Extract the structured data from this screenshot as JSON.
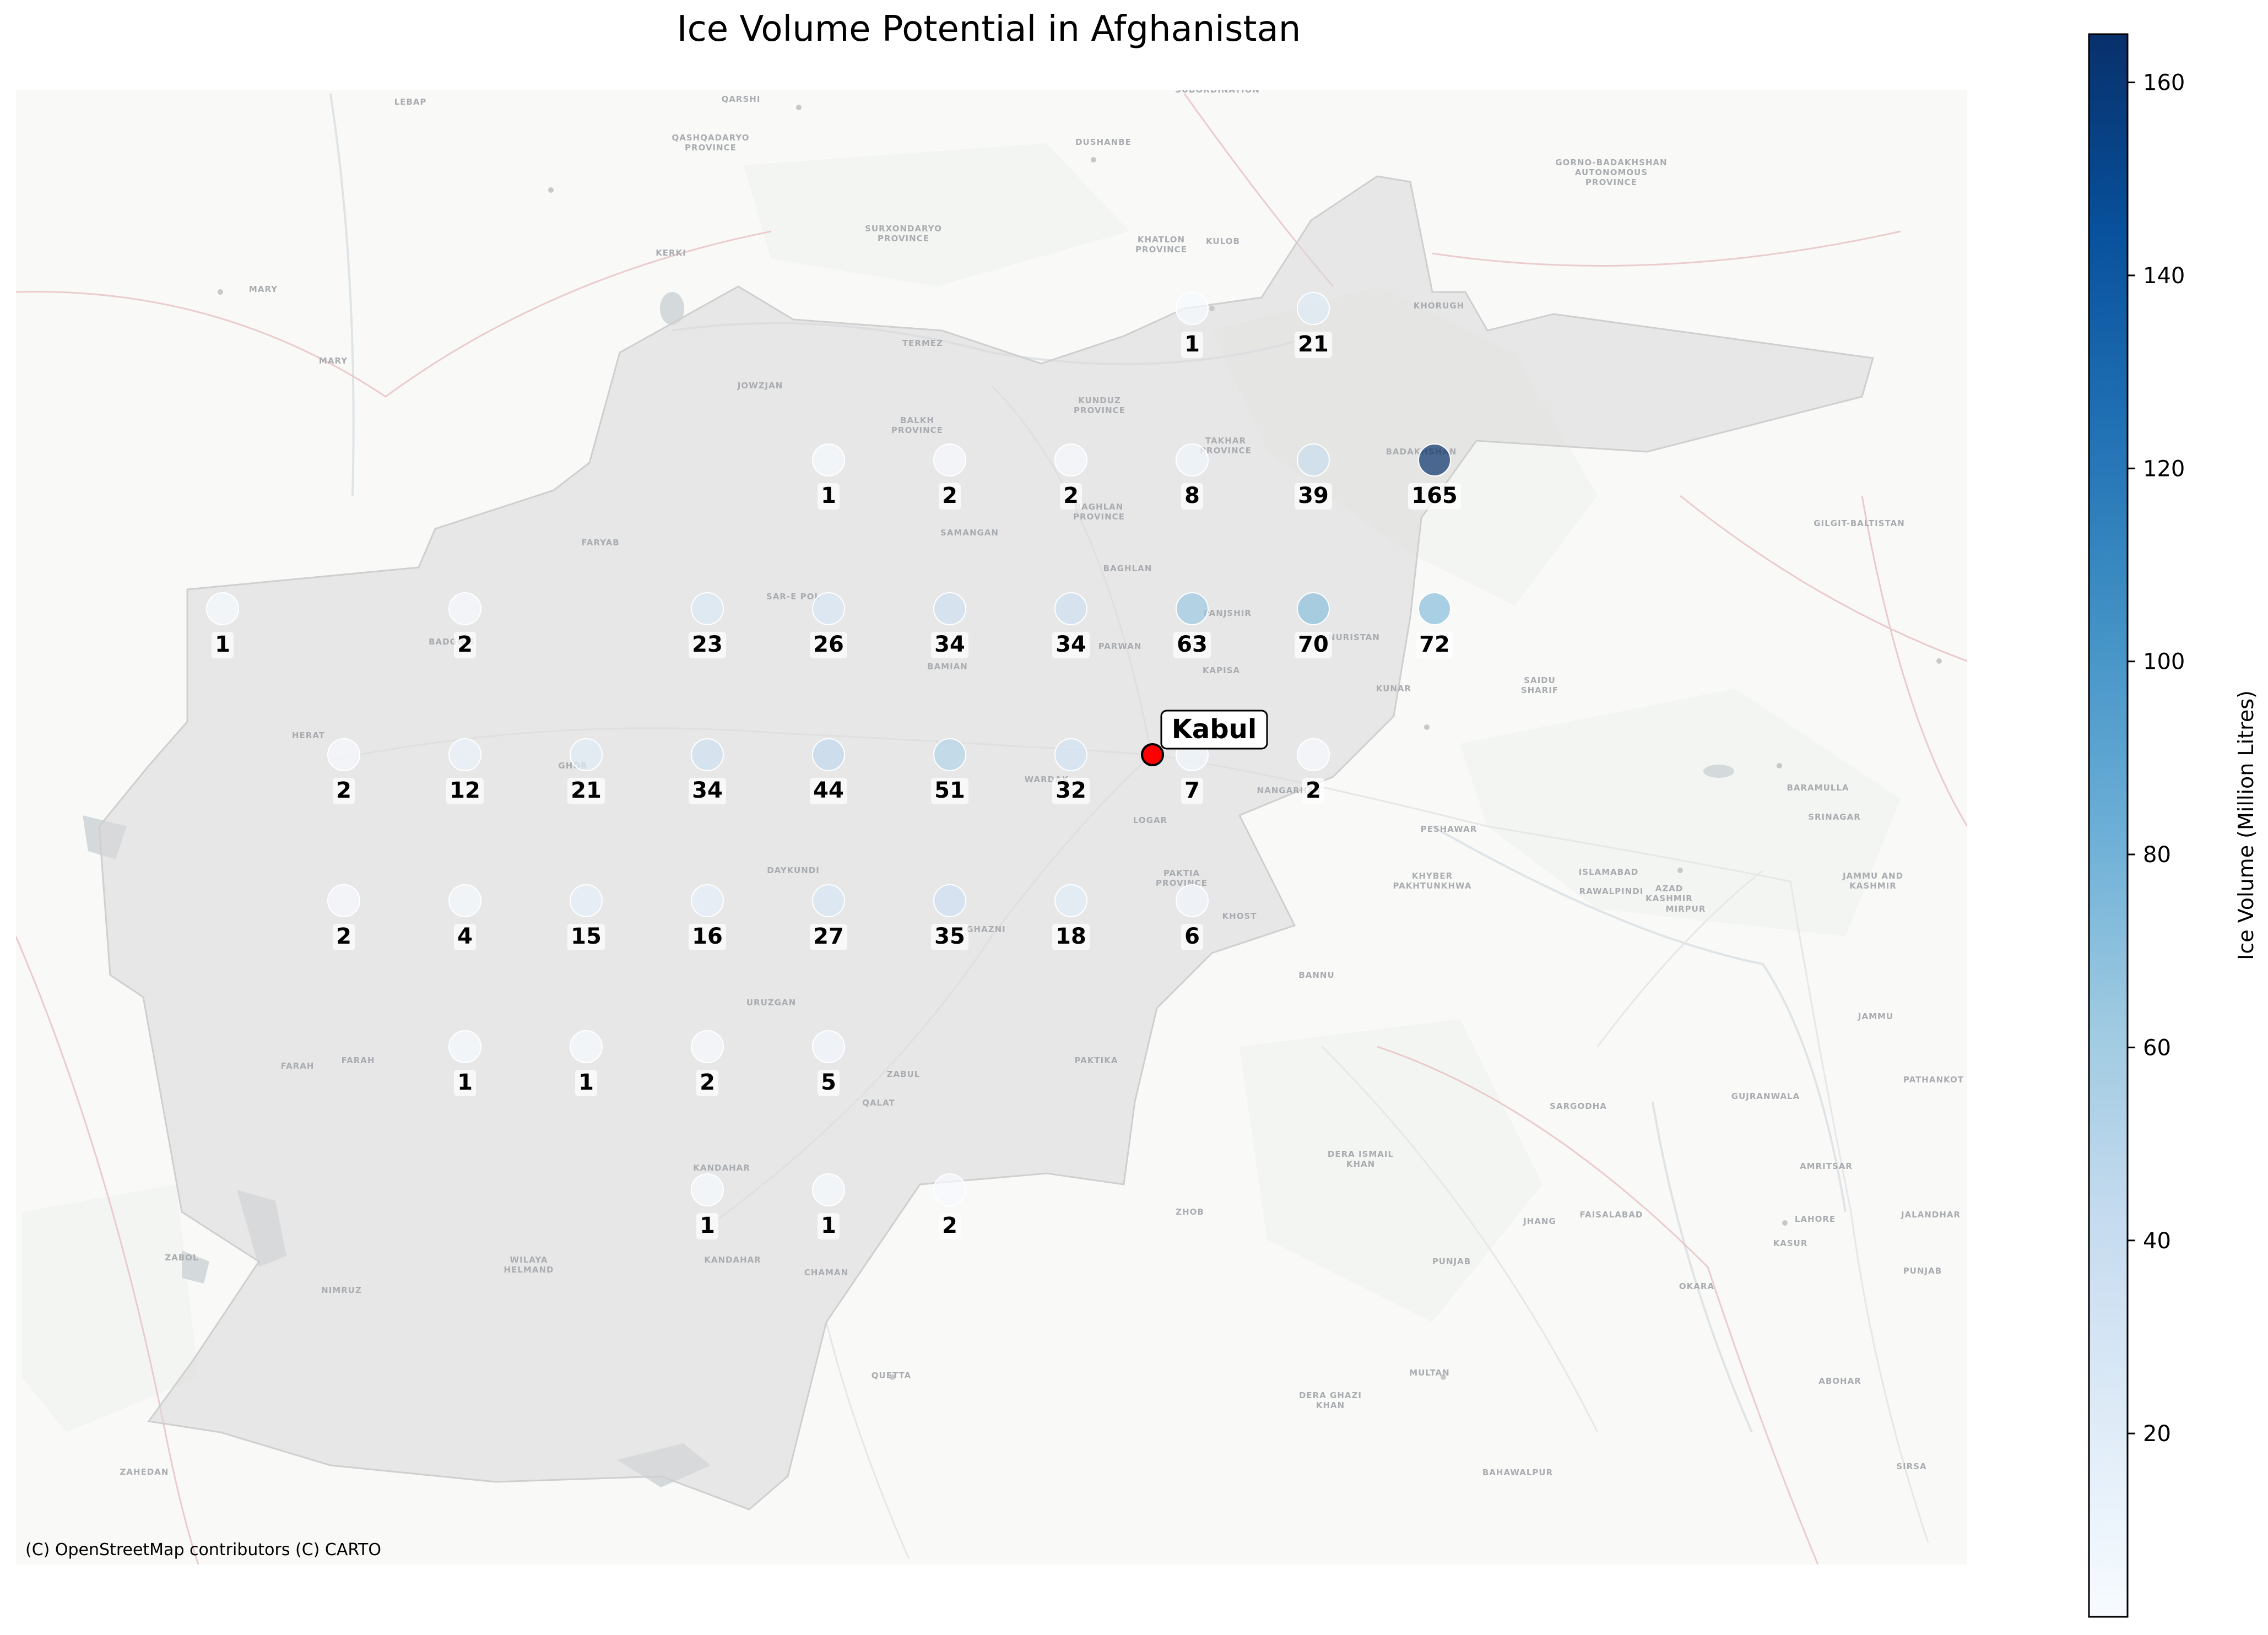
{
  "title": "Ice Volume Potential in Afghanistan",
  "attribution": "(C) OpenStreetMap contributors (C) CARTO",
  "colorbar": {
    "label": "Ice Volume (Million Litres)",
    "ticks": [
      20,
      40,
      60,
      80,
      100,
      120,
      140,
      160
    ],
    "range": [
      1,
      165
    ],
    "colormap": "Blues",
    "colors": [
      "#f7fbff",
      "#deebf7",
      "#c6dbef",
      "#9ecae1",
      "#6baed6",
      "#4292c6",
      "#2171b5",
      "#08519c",
      "#08306b"
    ]
  },
  "marker": {
    "name": "Kabul",
    "color": "#ff0000"
  },
  "map_labels": [
    {
      "id": "lebap",
      "text": "LEBAP"
    },
    {
      "id": "qarshi",
      "text": "QARSHI"
    },
    {
      "id": "qashqadaryo",
      "text": "QASHQADARYO PROVINCE"
    },
    {
      "id": "dushanbe",
      "text": "DUSHANBE"
    },
    {
      "id": "subordination",
      "text": "SUBORDINATION"
    },
    {
      "id": "gorno",
      "text": "GORNO-BADAKHSHAN AUTONOMOUS PROVINCE"
    },
    {
      "id": "surxondaryo",
      "text": "SURXONDARYO PROVINCE"
    },
    {
      "id": "khatlon",
      "text": "KHATLON PROVINCE"
    },
    {
      "id": "kulob",
      "text": "KULOB"
    },
    {
      "id": "kerki",
      "text": "KERKI"
    },
    {
      "id": "mary1",
      "text": "MARY"
    },
    {
      "id": "mary2",
      "text": "MARY"
    },
    {
      "id": "termez",
      "text": "TERMEZ"
    },
    {
      "id": "khorugh",
      "text": "KHORUGH"
    },
    {
      "id": "jowzjan",
      "text": "JOWZJAN"
    },
    {
      "id": "balkh",
      "text": "BALKH PROVINCE"
    },
    {
      "id": "kunduz",
      "text": "KUNDUZ PROVINCE"
    },
    {
      "id": "takhar",
      "text": "TAKHAR PROVINCE"
    },
    {
      "id": "badakhshan",
      "text": "BADAKHSHAN"
    },
    {
      "id": "baghlan",
      "text": "BAGHLAN PROVINCE"
    },
    {
      "id": "samangan",
      "text": "SAMANGAN"
    },
    {
      "id": "faryab",
      "text": "FARYAB"
    },
    {
      "id": "sarepol",
      "text": "SAR-E POL"
    },
    {
      "id": "gilgit",
      "text": "GILGIT-BALTISTAN"
    },
    {
      "id": "baghlan2",
      "text": "BAGHLAN"
    },
    {
      "id": "panjshir",
      "text": "PANJSHIR"
    },
    {
      "id": "nuristan",
      "text": "NURISTAN"
    },
    {
      "id": "kunar",
      "text": "KUNAR"
    },
    {
      "id": "kapisa",
      "text": "KAPISA"
    },
    {
      "id": "parwan",
      "text": "PARWAN"
    },
    {
      "id": "badghis",
      "text": "BADGHIS"
    },
    {
      "id": "bamian",
      "text": "BAMIAN"
    },
    {
      "id": "herat",
      "text": "HERAT"
    },
    {
      "id": "ghor",
      "text": "GHŌR"
    },
    {
      "id": "wardak",
      "text": "WARDAK"
    },
    {
      "id": "logar",
      "text": "LOGAR"
    },
    {
      "id": "nangarhar",
      "text": "NANGARHAR"
    },
    {
      "id": "saidu",
      "text": "SAIDU SHARIF"
    },
    {
      "id": "peshawar",
      "text": "PESHAWAR"
    },
    {
      "id": "azad",
      "text": "AZAD KASHMIR"
    },
    {
      "id": "srinagar",
      "text": "SRINAGAR"
    },
    {
      "id": "baramulla",
      "text": "BARAMULLA"
    },
    {
      "id": "daykundi",
      "text": "DAYKUNDI"
    },
    {
      "id": "paktia",
      "text": "PAKTIA PROVINCE"
    },
    {
      "id": "khyber",
      "text": "KHYBER PAKHTUNKHWA"
    },
    {
      "id": "islamabad",
      "text": "ISLAMABAD"
    },
    {
      "id": "rawalpindi",
      "text": "RAWALPINDI"
    },
    {
      "id": "jammu",
      "text": "JAMMU AND KASHMIR"
    },
    {
      "id": "ghazni",
      "text": "GHAZNI"
    },
    {
      "id": "khost",
      "text": "KHOST"
    },
    {
      "id": "bannu",
      "text": "BANNU"
    },
    {
      "id": "jammu2",
      "text": "JAMMU"
    },
    {
      "id": "uruzgan",
      "text": "URUZGAN"
    },
    {
      "id": "farah",
      "text": "FARAH"
    },
    {
      "id": "farah2",
      "text": "FARAH"
    },
    {
      "id": "paktika",
      "text": "PAKTIKA"
    },
    {
      "id": "zabul",
      "text": "ZABUL"
    },
    {
      "id": "qalat",
      "text": "QALAT"
    },
    {
      "id": "sargodha",
      "text": "SARGODHA"
    },
    {
      "id": "gujranwala",
      "text": "GUJRANWALA"
    },
    {
      "id": "pathankot",
      "text": "PATHANKOT"
    },
    {
      "id": "deraismail",
      "text": "DERA ISMAIL KHAN"
    },
    {
      "id": "amritsar",
      "text": "AMRITSAR"
    },
    {
      "id": "kandahar",
      "text": "KANDAHAR"
    },
    {
      "id": "kandahar2",
      "text": "KANDAHAR"
    },
    {
      "id": "zhob",
      "text": "ZHOB"
    },
    {
      "id": "lahore",
      "text": "LAHORE"
    },
    {
      "id": "jalandhar",
      "text": "JALANDHAR"
    },
    {
      "id": "faisalabad",
      "text": "FAISALABAD"
    },
    {
      "id": "kasur",
      "text": "KASUR"
    },
    {
      "id": "zabol",
      "text": "ZABOL"
    },
    {
      "id": "wilaya",
      "text": "WILAYA HELMAND"
    },
    {
      "id": "jhang",
      "text": "JHANG"
    },
    {
      "id": "nimruz",
      "text": "NIMRUZ"
    },
    {
      "id": "chaman",
      "text": "CHAMAN"
    },
    {
      "id": "punjab",
      "text": "PUNJAB"
    },
    {
      "id": "punjab2",
      "text": "PUNJAB"
    },
    {
      "id": "okara",
      "text": "OKARA"
    },
    {
      "id": "quetta",
      "text": "QUETTA"
    },
    {
      "id": "multan",
      "text": "MULTAN"
    },
    {
      "id": "deraghazi",
      "text": "DERA GHAZI KHAN"
    },
    {
      "id": "abohar",
      "text": "ABOHAR"
    },
    {
      "id": "zahedan",
      "text": "ZAHEDAN"
    },
    {
      "id": "bahawalpur",
      "text": "BAHAWALPUR"
    },
    {
      "id": "sirsa",
      "text": "SIRSA"
    },
    {
      "id": "mirpur",
      "text": "MIRPUR"
    }
  ],
  "points": [
    {
      "id": "p01",
      "value": 1
    },
    {
      "id": "p02",
      "value": 21
    },
    {
      "id": "p03",
      "value": 1
    },
    {
      "id": "p04",
      "value": 2
    },
    {
      "id": "p05",
      "value": 2
    },
    {
      "id": "p06",
      "value": 8
    },
    {
      "id": "p07",
      "value": 39
    },
    {
      "id": "p08",
      "value": 165
    },
    {
      "id": "p09",
      "value": 1
    },
    {
      "id": "p10",
      "value": 2
    },
    {
      "id": "p11",
      "value": 23
    },
    {
      "id": "p12",
      "value": 26
    },
    {
      "id": "p13",
      "value": 34
    },
    {
      "id": "p14",
      "value": 34
    },
    {
      "id": "p15",
      "value": 63
    },
    {
      "id": "p16",
      "value": 70
    },
    {
      "id": "p17",
      "value": 72
    },
    {
      "id": "p18",
      "value": 2
    },
    {
      "id": "p19",
      "value": 12
    },
    {
      "id": "p20",
      "value": 21
    },
    {
      "id": "p21",
      "value": 34
    },
    {
      "id": "p22",
      "value": 44
    },
    {
      "id": "p23",
      "value": 51
    },
    {
      "id": "p24",
      "value": 32
    },
    {
      "id": "p25",
      "value": 7
    },
    {
      "id": "p26",
      "value": 2
    },
    {
      "id": "p27",
      "value": 2
    },
    {
      "id": "p28",
      "value": 4
    },
    {
      "id": "p29",
      "value": 15
    },
    {
      "id": "p30",
      "value": 16
    },
    {
      "id": "p31",
      "value": 27
    },
    {
      "id": "p32",
      "value": 35
    },
    {
      "id": "p33",
      "value": 18
    },
    {
      "id": "p34",
      "value": 6
    },
    {
      "id": "p35",
      "value": 1
    },
    {
      "id": "p36",
      "value": 1
    },
    {
      "id": "p37",
      "value": 2
    },
    {
      "id": "p38",
      "value": 5
    },
    {
      "id": "p39",
      "value": 1
    },
    {
      "id": "p40",
      "value": 1
    },
    {
      "id": "p41",
      "value": 2
    }
  ]
}
